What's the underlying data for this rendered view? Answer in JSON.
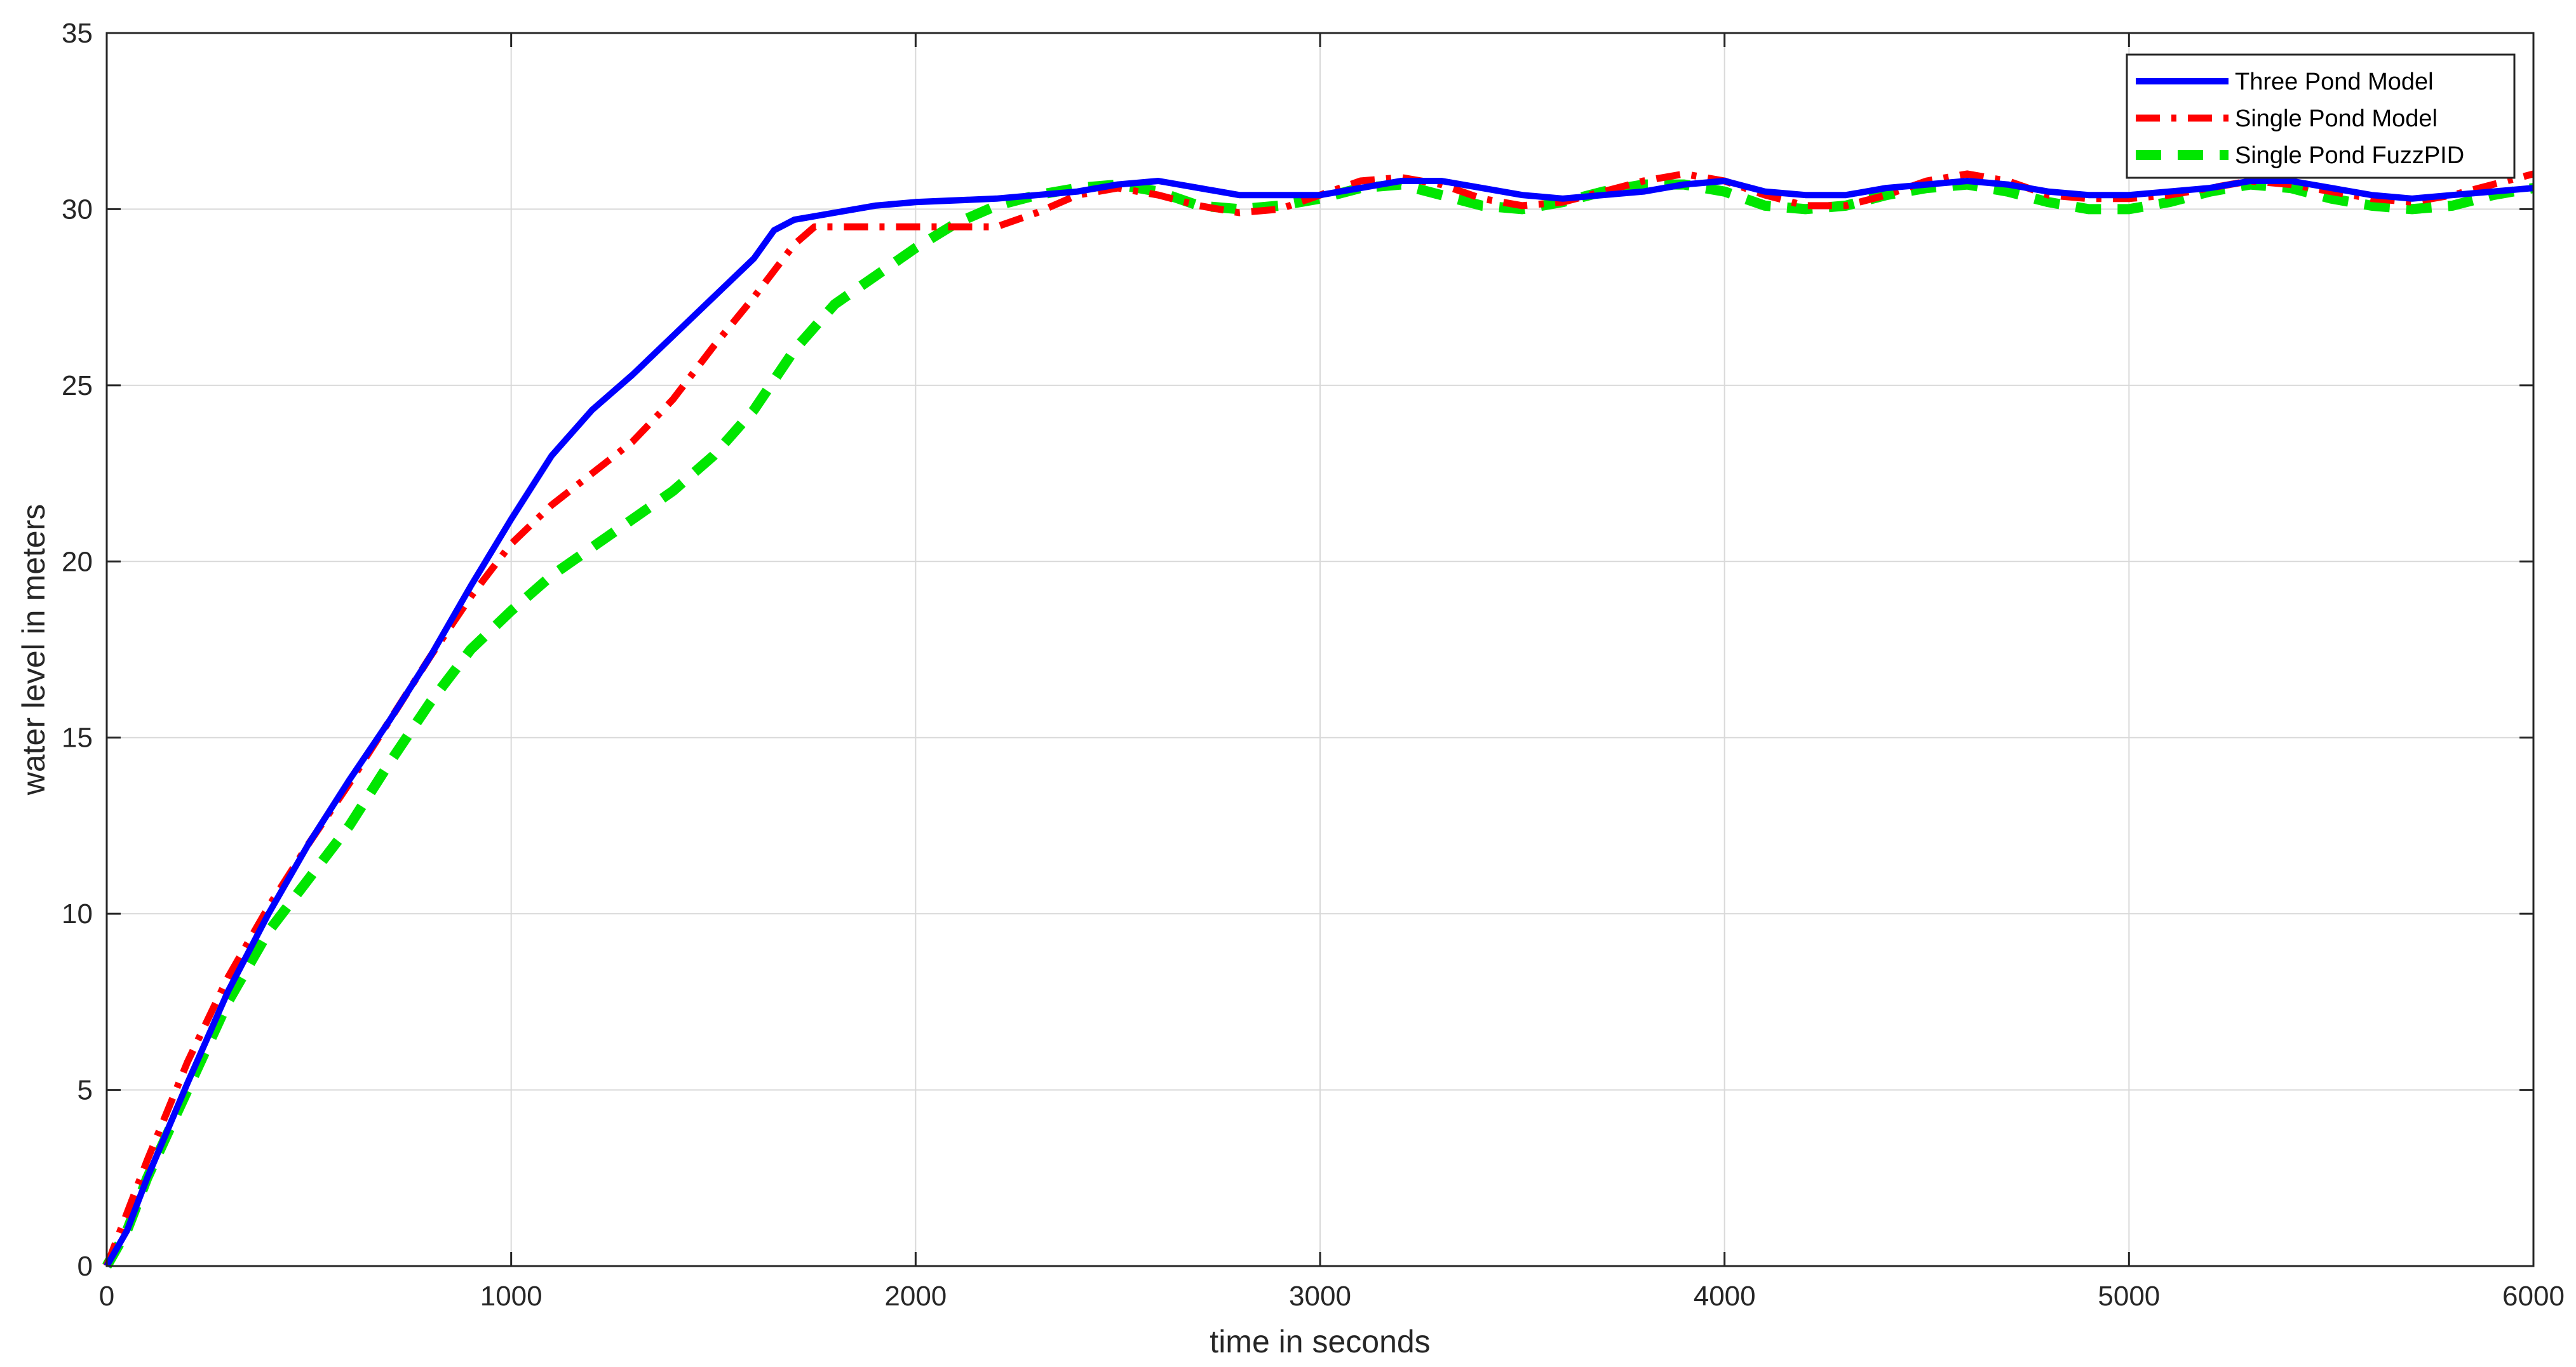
{
  "chart_data": {
    "type": "line",
    "title": "",
    "xlabel": "time in seconds",
    "ylabel": "water level in meters",
    "xlim": [
      0,
      6000
    ],
    "ylim": [
      0,
      35
    ],
    "xticks": [
      0,
      1000,
      2000,
      3000,
      4000,
      5000,
      6000
    ],
    "yticks": [
      0,
      5,
      10,
      15,
      20,
      25,
      30,
      35
    ],
    "grid": true,
    "legend_position": "top-right",
    "series": [
      {
        "name": "Three Pond Model",
        "color": "#0000ff",
        "style": "solid",
        "x": [
          0,
          50,
          100,
          200,
          300,
          400,
          500,
          600,
          700,
          800,
          900,
          1000,
          1100,
          1200,
          1300,
          1400,
          1500,
          1600,
          1650,
          1700,
          1800,
          1900,
          2000,
          2200,
          2400,
          2500,
          2600,
          2700,
          2800,
          3000,
          3200,
          3300,
          3400,
          3500,
          3600,
          3700,
          3800,
          3900,
          4000,
          4100,
          4200,
          4300,
          4400,
          4500,
          4600,
          4700,
          4800,
          4900,
          5000,
          5100,
          5200,
          5300,
          5400,
          5500,
          5600,
          5700,
          5800,
          5900,
          6000
        ],
        "y": [
          0,
          1.0,
          2.5,
          5.2,
          7.8,
          10.0,
          12.0,
          13.8,
          15.5,
          17.3,
          19.3,
          21.2,
          23.0,
          24.3,
          25.3,
          26.4,
          27.5,
          28.6,
          29.4,
          29.7,
          29.9,
          30.1,
          30.2,
          30.3,
          30.5,
          30.7,
          30.8,
          30.6,
          30.4,
          30.4,
          30.8,
          30.8,
          30.6,
          30.4,
          30.3,
          30.4,
          30.5,
          30.7,
          30.8,
          30.5,
          30.4,
          30.4,
          30.6,
          30.7,
          30.8,
          30.7,
          30.5,
          30.4,
          30.4,
          30.5,
          30.6,
          30.8,
          30.8,
          30.6,
          30.4,
          30.3,
          30.4,
          30.5,
          30.6
        ]
      },
      {
        "name": "Single Pond Model",
        "color": "#ff0000",
        "style": "dashdot",
        "x": [
          0,
          50,
          100,
          200,
          300,
          400,
          500,
          600,
          700,
          800,
          900,
          1000,
          1100,
          1200,
          1300,
          1400,
          1500,
          1600,
          1700,
          1750,
          1800,
          2000,
          2200,
          2300,
          2400,
          2500,
          2600,
          2700,
          2800,
          2900,
          3000,
          3100,
          3200,
          3300,
          3400,
          3500,
          3600,
          3700,
          3800,
          3900,
          4000,
          4100,
          4200,
          4300,
          4400,
          4500,
          4600,
          4700,
          4800,
          4900,
          5000,
          5100,
          5200,
          5300,
          5400,
          5500,
          5600,
          5700,
          5800,
          5900,
          6000
        ],
        "y": [
          0,
          1.5,
          3.0,
          5.8,
          8.2,
          10.2,
          12.0,
          13.7,
          15.5,
          17.3,
          19.0,
          20.5,
          21.6,
          22.5,
          23.4,
          24.6,
          26.1,
          27.5,
          29.0,
          29.5,
          29.5,
          29.5,
          29.5,
          29.9,
          30.4,
          30.6,
          30.4,
          30.1,
          29.9,
          30.0,
          30.4,
          30.8,
          30.9,
          30.7,
          30.3,
          30.1,
          30.2,
          30.5,
          30.8,
          31.0,
          30.8,
          30.4,
          30.1,
          30.1,
          30.4,
          30.8,
          31.0,
          30.8,
          30.4,
          30.3,
          30.3,
          30.4,
          30.6,
          30.8,
          30.7,
          30.5,
          30.3,
          30.2,
          30.4,
          30.7,
          31.0
        ]
      },
      {
        "name": "Single Pond FuzzPID",
        "color": "#00e600",
        "style": "dashed",
        "x": [
          0,
          50,
          100,
          200,
          300,
          400,
          500,
          600,
          700,
          800,
          900,
          1000,
          1100,
          1200,
          1300,
          1400,
          1500,
          1600,
          1700,
          1800,
          1900,
          2000,
          2100,
          2200,
          2300,
          2400,
          2500,
          2600,
          2700,
          2800,
          2900,
          3000,
          3100,
          3200,
          3300,
          3400,
          3500,
          3600,
          3700,
          3800,
          3900,
          4000,
          4100,
          4200,
          4300,
          4400,
          4500,
          4600,
          4700,
          4800,
          4900,
          5000,
          5100,
          5200,
          5300,
          5400,
          5500,
          5600,
          5700,
          5800,
          5900,
          6000
        ],
        "y": [
          0,
          1.0,
          2.5,
          5.0,
          7.5,
          9.5,
          11.0,
          12.5,
          14.3,
          16.0,
          17.5,
          18.6,
          19.6,
          20.4,
          21.2,
          22.0,
          23.0,
          24.3,
          26.0,
          27.3,
          28.1,
          28.9,
          29.6,
          30.1,
          30.4,
          30.6,
          30.7,
          30.5,
          30.1,
          30.0,
          30.1,
          30.3,
          30.6,
          30.7,
          30.4,
          30.1,
          30.0,
          30.2,
          30.5,
          30.7,
          30.7,
          30.5,
          30.1,
          30.0,
          30.1,
          30.4,
          30.6,
          30.7,
          30.5,
          30.2,
          30.0,
          30.0,
          30.2,
          30.5,
          30.7,
          30.6,
          30.3,
          30.1,
          30.0,
          30.1,
          30.4,
          30.6
        ]
      }
    ]
  }
}
